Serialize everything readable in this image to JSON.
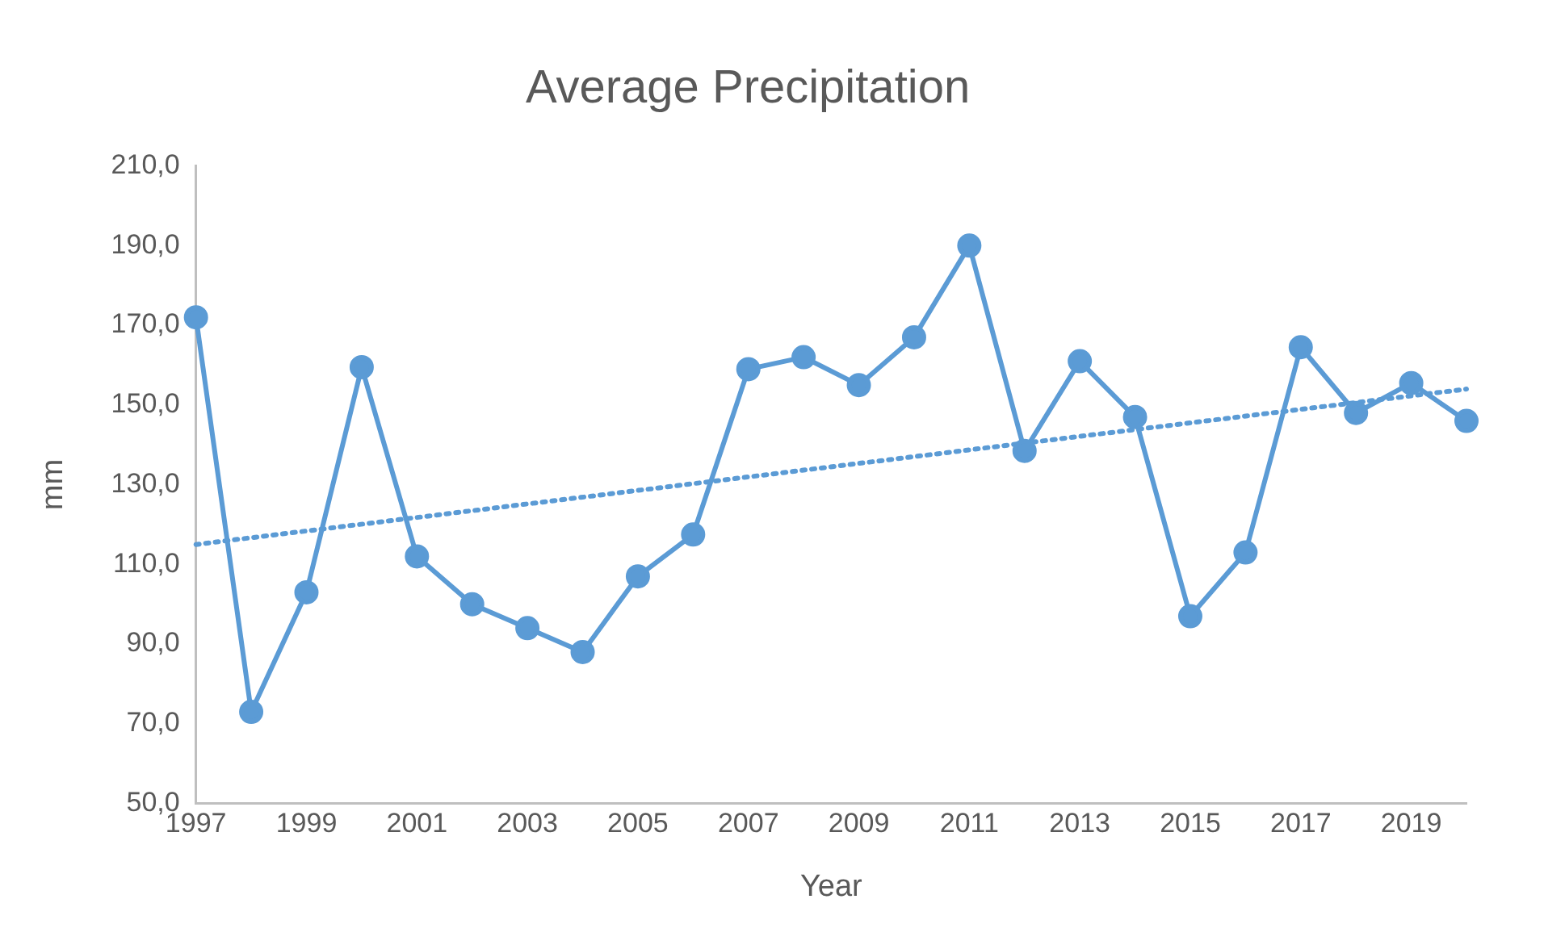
{
  "chart_data": {
    "type": "line",
    "title": "Average Precipitation",
    "xlabel": "Year",
    "ylabel": "mm",
    "x": [
      1997,
      1998,
      1999,
      2000,
      2001,
      2002,
      2003,
      2004,
      2005,
      2006,
      2007,
      2008,
      2009,
      2010,
      2011,
      2012,
      2013,
      2014,
      2015,
      2016,
      2017,
      2018,
      2019,
      2020
    ],
    "series": [
      {
        "color": "#5b9bd5",
        "marker": "circle",
        "line_style": "solid",
        "values": [
          172,
          73,
          103,
          159.5,
          112,
          100,
          94,
          88,
          107,
          117.5,
          159,
          162,
          155,
          167,
          190,
          138.5,
          161,
          147,
          97,
          113,
          164.5,
          148,
          155.5,
          146
        ]
      },
      {
        "type": "line",
        "color": "#5b9bd5",
        "marker": "none",
        "line_style": "dotted",
        "x": [
          1997,
          2020
        ],
        "values": [
          115,
          154
        ]
      }
    ],
    "xlim": [
      1997,
      2020
    ],
    "xticks": [
      1997,
      1999,
      2001,
      2003,
      2005,
      2007,
      2009,
      2011,
      2013,
      2015,
      2017,
      2019
    ],
    "ylim": [
      50,
      210
    ],
    "yticks": [
      {
        "value": 50,
        "label": "50,0"
      },
      {
        "value": 70,
        "label": "70,0"
      },
      {
        "value": 90,
        "label": "90,0"
      },
      {
        "value": 110,
        "label": "110,0"
      },
      {
        "value": 130,
        "label": "130,0"
      },
      {
        "value": 150,
        "label": "150,0"
      },
      {
        "value": 170,
        "label": "170,0"
      },
      {
        "value": 190,
        "label": "190,0"
      },
      {
        "value": 210,
        "label": "210,0"
      }
    ],
    "grid": false,
    "legend": false
  }
}
